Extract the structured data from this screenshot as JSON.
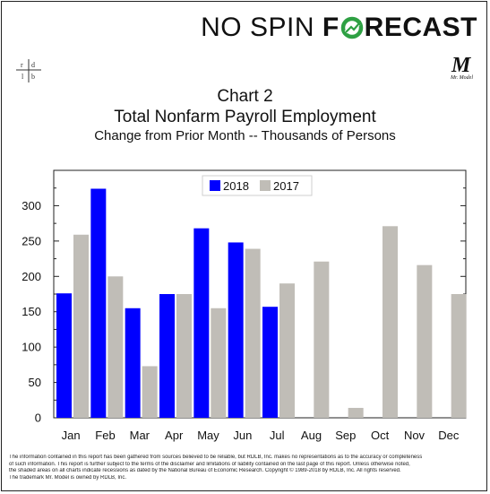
{
  "brand": {
    "part1": "NO SPIN ",
    "part2a": "F",
    "part2b": "RECAST",
    "o_color": "#2ea043"
  },
  "logo_left": {
    "l1": "r d",
    "l2": "l b"
  },
  "logo_right": {
    "letter": "M",
    "caption": "Mr. Model"
  },
  "chart_data": {
    "type": "bar",
    "title": "Chart 2",
    "subtitle": "Total Nonfarm Payroll Employment",
    "subtitle2": "Change from Prior Month -- Thousands of Persons",
    "categories": [
      "Jan",
      "Feb",
      "Mar",
      "Apr",
      "May",
      "Jun",
      "Jul",
      "Aug",
      "Sep",
      "Oct",
      "Nov",
      "Dec"
    ],
    "series": [
      {
        "name": "2018",
        "color": "#0000ff",
        "values": [
          176,
          324,
          155,
          175,
          268,
          248,
          157,
          null,
          null,
          null,
          null,
          null
        ]
      },
      {
        "name": "2017",
        "color": "#c0bdb7",
        "values": [
          259,
          200,
          73,
          175,
          155,
          239,
          190,
          221,
          14,
          271,
          216,
          175
        ]
      }
    ],
    "ylim": [
      0,
      350
    ],
    "yticks": [
      "0",
      "50",
      "100",
      "150",
      "200",
      "250",
      "300"
    ],
    "legend_position": "top-center",
    "grid": false
  },
  "disclaimer": [
    "The information contained in this report has been gathered from sources believed to be reliable, but RDLB, Inc. makes no representations as to the accuracy or completeness",
    "of such information. This report is further subject to the terms of the disclaimer and limitations of liability contained on the last page of this report.  Unless otherwise noted,",
    "the shaded areas on all charts indicate recessions as dated by the National Bureau of Economic Research. Copyright © 1989-2018 by RDLB, Inc. All rights reserved.",
    "The trademark Mr. Model is owned by RDLB, Inc."
  ]
}
